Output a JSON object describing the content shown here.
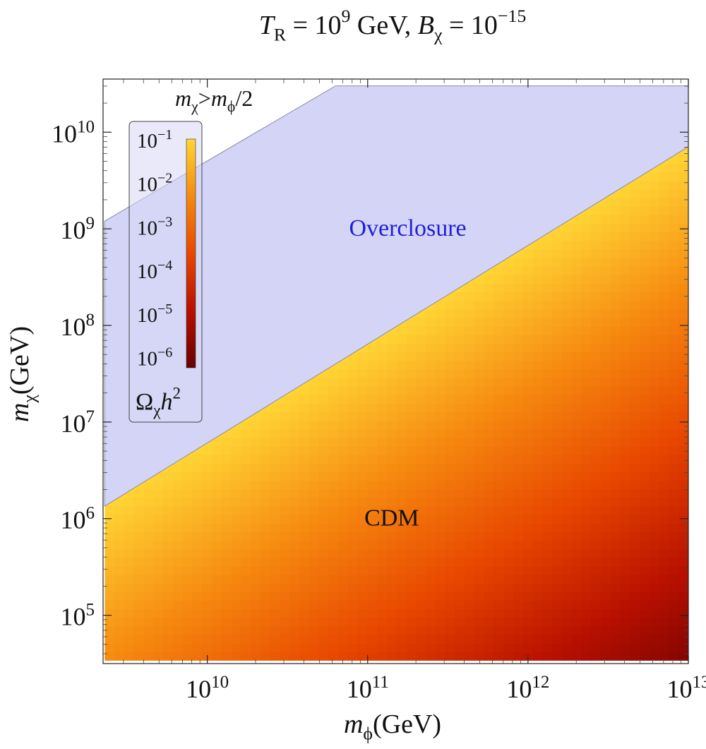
{
  "chart_data": {
    "type": "heatmap",
    "title": {
      "text": "T_R = 10^9 GeV,  B_χ = 10^−15",
      "parts": [
        {
          "t": "T",
          "i": true
        },
        {
          "t": "R",
          "sub": true
        },
        {
          "t": " = 10"
        },
        {
          "t": "9",
          "sup": true
        },
        {
          "t": " GeV,  "
        },
        {
          "t": "B",
          "i": true
        },
        {
          "t": "χ",
          "sub": true
        },
        {
          "t": " = 10"
        },
        {
          "t": "−15",
          "sup": true
        }
      ]
    },
    "xaxis": {
      "label": "m_ϕ(GeV)",
      "label_parts": [
        {
          "t": "m",
          "i": true
        },
        {
          "t": "ϕ",
          "sub": true
        },
        {
          "t": "(GeV)"
        }
      ],
      "scale": "log",
      "range_log10": [
        9.35,
        13.0
      ],
      "ticks": [
        {
          "value": 10000000000.0,
          "base": "10",
          "exp": "10"
        },
        {
          "value": 100000000000.0,
          "base": "10",
          "exp": "11"
        },
        {
          "value": 1000000000000.0,
          "base": "10",
          "exp": "12"
        },
        {
          "value": 10000000000000.0,
          "base": "10",
          "exp": "13"
        }
      ]
    },
    "yaxis": {
      "label": "m_χ(GeV)",
      "label_parts": [
        {
          "t": "m",
          "i": true
        },
        {
          "t": "χ",
          "sub": true
        },
        {
          "t": "(GeV)"
        }
      ],
      "scale": "log",
      "range_log10": [
        4.5,
        10.55
      ],
      "ticks": [
        {
          "value": 100000.0,
          "base": "10",
          "exp": "5"
        },
        {
          "value": 1000000.0,
          "base": "10",
          "exp": "6"
        },
        {
          "value": 10000000.0,
          "base": "10",
          "exp": "7"
        },
        {
          "value": 100000000.0,
          "base": "10",
          "exp": "8"
        },
        {
          "value": 1000000000.0,
          "base": "10",
          "exp": "9"
        },
        {
          "value": 10000000000.0,
          "base": "10",
          "exp": "10"
        }
      ]
    },
    "regions": [
      {
        "name": "Overclosure",
        "color": "#d4d4f7",
        "edge_color": "#8a8aa8",
        "label_color": "#1f1fd6",
        "label_at": {
          "log10_mphi": 11.25,
          "log10_mchi": 9.0
        },
        "boundary_log10": [
          [
            9.36,
            9.08
          ],
          [
            10.8,
            10.48
          ],
          [
            13.0,
            10.48
          ],
          [
            13.0,
            9.85
          ],
          [
            9.36,
            6.13
          ]
        ]
      },
      {
        "name": "CDM",
        "label_color": "#111111",
        "label_at": {
          "log10_mphi": 11.15,
          "log10_mchi": 6.0
        },
        "boundary_log10": [
          [
            9.36,
            6.13
          ],
          [
            13.0,
            9.85
          ],
          [
            13.0,
            4.53
          ],
          [
            9.36,
            4.53
          ]
        ]
      }
    ],
    "heatmap": {
      "quantity": "Ω_χ h²",
      "corner_values_log10": {
        "top_left": -1,
        "top_right": -1,
        "bottom_left": -2.3,
        "bottom_right": -5.8
      }
    },
    "colorbar": {
      "title_parts": [
        {
          "t": "Ω",
          "i": false
        },
        {
          "t": "χ",
          "sub": true
        },
        {
          "t": "h",
          "i": true
        },
        {
          "t": "2",
          "sup": true
        }
      ],
      "scale": "log",
      "range_log10": [
        -6.25,
        -1
      ],
      "colors": [
        "#6a0000",
        "#b81000",
        "#e84800",
        "#f68a10",
        "#ffd535"
      ],
      "ticks": [
        {
          "base": "10",
          "exp": "−1",
          "log10": -1
        },
        {
          "base": "10",
          "exp": "−2",
          "log10": -2
        },
        {
          "base": "10",
          "exp": "−3",
          "log10": -3
        },
        {
          "base": "10",
          "exp": "−4",
          "log10": -4
        },
        {
          "base": "10",
          "exp": "−5",
          "log10": -5
        },
        {
          "base": "10",
          "exp": "−6",
          "log10": -6
        }
      ]
    },
    "annotations": [
      {
        "text": "m_χ>m_ϕ/2",
        "parts": [
          {
            "t": "m",
            "i": true
          },
          {
            "t": "χ",
            "sub": true
          },
          {
            "t": ">"
          },
          {
            "t": "m",
            "i": true
          },
          {
            "t": "ϕ",
            "sub": true
          },
          {
            "t": "/2"
          }
        ]
      }
    ],
    "grid": false,
    "legend": "colorbar inside top-left"
  }
}
